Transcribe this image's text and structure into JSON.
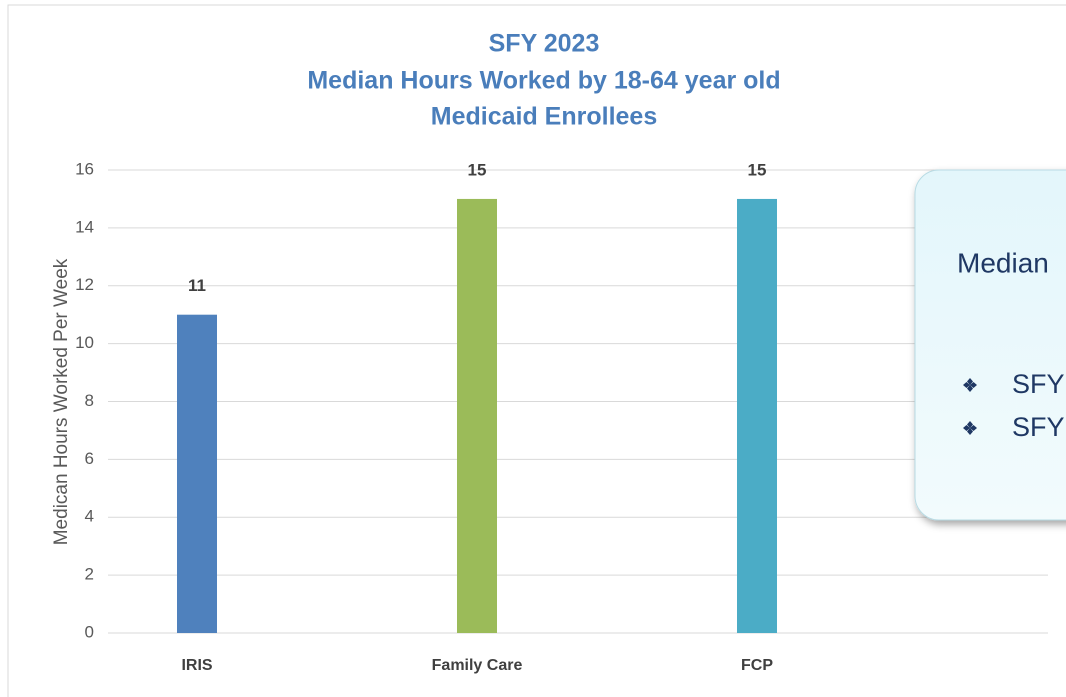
{
  "chart_data": {
    "type": "bar",
    "title": [
      "SFY 2023",
      "Median Hours Worked by 18-64 year old",
      "Medicaid Enrollees"
    ],
    "y_label": "Medican Hours Worked Per Week",
    "categories": [
      "IRIS",
      "Family Care",
      "FCP"
    ],
    "values": [
      11,
      15,
      15
    ],
    "colors": [
      "#4f81bd",
      "#9bbb59",
      "#4bacc6"
    ],
    "ylim": [
      0,
      16
    ],
    "yticks": [
      0,
      2,
      4,
      6,
      8,
      10,
      12,
      14,
      16
    ],
    "grid": true,
    "data_labels": true
  },
  "callout": {
    "heading": "Median",
    "bullets": [
      "SFY",
      "SFY"
    ]
  }
}
